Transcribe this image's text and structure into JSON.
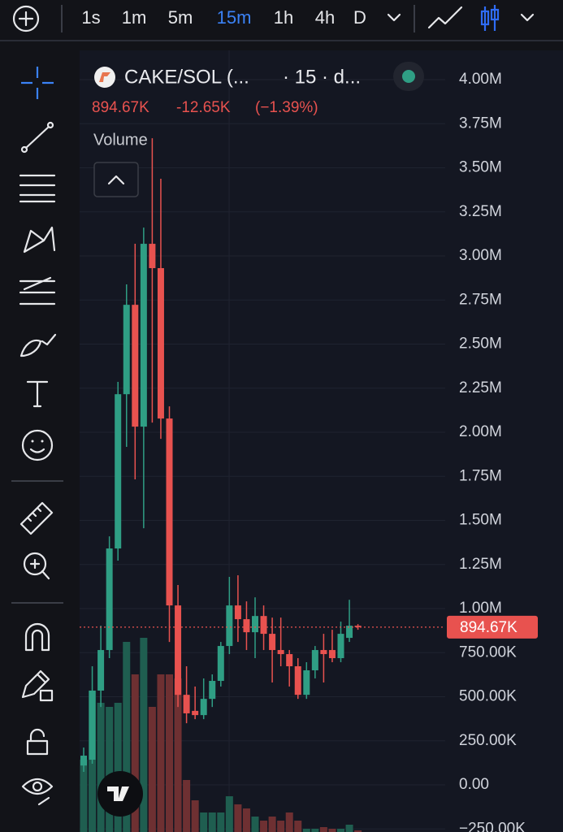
{
  "toolbar": {
    "intervals": [
      "1s",
      "1m",
      "5m",
      "15m",
      "1h",
      "4h",
      "D"
    ],
    "selected": "15m"
  },
  "chart_data": {
    "type": "candlestick",
    "symbol": "CAKE/SOL (...",
    "interval_label": "· 15 · d...",
    "study": "Volume",
    "last_price": {
      "value": 894670,
      "label": "894.67K"
    },
    "change": {
      "value": -12650,
      "label": "-12.65K"
    },
    "change_pct": {
      "value": -1.39,
      "label": "(−1.39%)"
    },
    "up_color": "#2f9e84",
    "down_color": "#e8524f",
    "volume_up_color": "#1f5e50",
    "volume_down_color": "#6e3032",
    "open": [
      110000,
      143000,
      535000,
      765000,
      1341000,
      2216000,
      2723000,
      2032000,
      3069000,
      2931000,
      2078000,
      1018000,
      511000,
      420000,
      396000,
      488000,
      590000,
      788000,
      1018000,
      940000,
      866000,
      958000,
      857000,
      765000,
      742000,
      673000,
      511000,
      650000,
      765000,
      765000,
      719000,
      834000,
      903000
    ],
    "high": [
      212000,
      673000,
      903000,
      1410000,
      2286000,
      2839000,
      3069000,
      3161000,
      3668000,
      3438000,
      2147000,
      1134000,
      673000,
      558000,
      604000,
      627000,
      811000,
      1180000,
      1189000,
      1041000,
      1064000,
      1018000,
      949000,
      949000,
      765000,
      719000,
      696000,
      788000,
      857000,
      880000,
      926000,
      1050000,
      912000
    ],
    "low": [
      74000,
      120000,
      442000,
      719000,
      1272000,
      1917000,
      1733000,
      1456000,
      2055000,
      1963000,
      811000,
      442000,
      350000,
      373000,
      373000,
      442000,
      558000,
      742000,
      811000,
      765000,
      719000,
      765000,
      581000,
      673000,
      558000,
      488000,
      488000,
      604000,
      581000,
      696000,
      696000,
      811000,
      880000
    ],
    "close": [
      166000,
      535000,
      765000,
      1341000,
      2216000,
      2723000,
      2032000,
      3069000,
      2931000,
      2078000,
      1018000,
      511000,
      406000,
      396000,
      488000,
      590000,
      788000,
      1018000,
      940000,
      866000,
      958000,
      857000,
      765000,
      742000,
      673000,
      511000,
      650000,
      765000,
      742000,
      719000,
      857000,
      903000,
      894670
    ],
    "volume": [
      89,
      174,
      159,
      154,
      159,
      234,
      194,
      239,
      154,
      194,
      194,
      189,
      64,
      39,
      24,
      24,
      24,
      44,
      34,
      29,
      19,
      14,
      19,
      14,
      24,
      14,
      4,
      4,
      6,
      4,
      4,
      9,
      2
    ],
    "ylim": [
      -267000,
      4166000
    ],
    "yticks": [
      {
        "value": 4000000,
        "label": "4.00M"
      },
      {
        "value": 3750000,
        "label": "3.75M"
      },
      {
        "value": 3500000,
        "label": "3.50M"
      },
      {
        "value": 3250000,
        "label": "3.25M"
      },
      {
        "value": 3000000,
        "label": "3.00M"
      },
      {
        "value": 2750000,
        "label": "2.75M"
      },
      {
        "value": 2500000,
        "label": "2.50M"
      },
      {
        "value": 2250000,
        "label": "2.25M"
      },
      {
        "value": 2000000,
        "label": "2.00M"
      },
      {
        "value": 1750000,
        "label": "1.75M"
      },
      {
        "value": 1500000,
        "label": "1.50M"
      },
      {
        "value": 1250000,
        "label": "1.25M"
      },
      {
        "value": 1000000,
        "label": "1.00M"
      },
      {
        "value": 750000,
        "label": "750.00K"
      },
      {
        "value": 500000,
        "label": "500.00K"
      },
      {
        "value": 250000,
        "label": "250.00K"
      },
      {
        "value": 0,
        "label": "0.00"
      },
      {
        "value": -250000,
        "label": "−250.00K"
      }
    ],
    "grid": true
  }
}
